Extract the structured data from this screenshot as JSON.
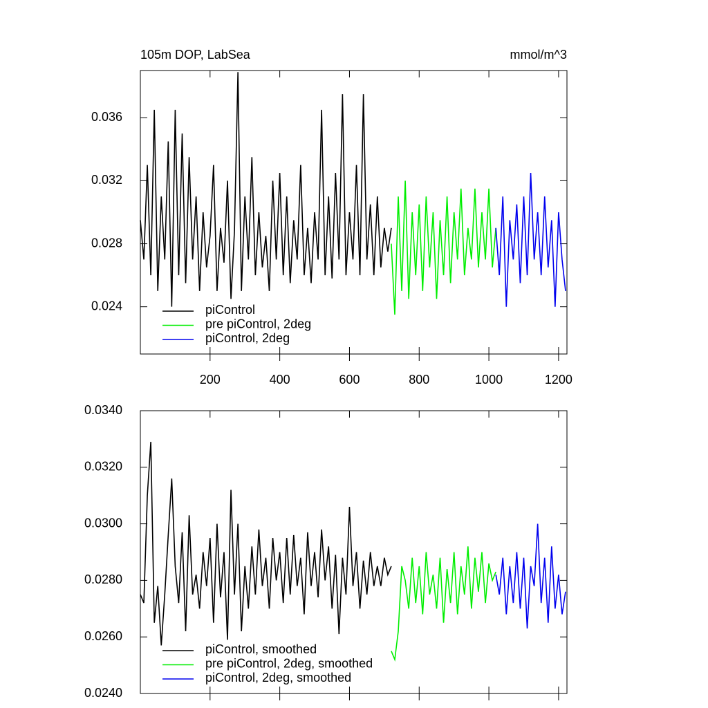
{
  "chart_data": [
    {
      "type": "line",
      "title": "105m DOP, LabSea",
      "unit_label": "mmol/m^3",
      "xlim": [
        0,
        1224
      ],
      "xticks": [
        200,
        400,
        600,
        800,
        1000,
        1200
      ],
      "ylim": [
        0.021,
        0.039
      ],
      "yticks": [
        0.024,
        0.028,
        0.032,
        0.036
      ],
      "legend": "lower left",
      "series": [
        {
          "name": "piControl",
          "color": "#000000",
          "x": [
            0,
            10,
            20,
            30,
            40,
            50,
            60,
            70,
            80,
            90,
            100,
            110,
            120,
            130,
            140,
            150,
            160,
            170,
            180,
            190,
            200,
            210,
            220,
            230,
            240,
            250,
            260,
            270,
            280,
            290,
            300,
            310,
            320,
            330,
            340,
            350,
            360,
            370,
            380,
            390,
            400,
            410,
            420,
            430,
            440,
            450,
            460,
            470,
            480,
            490,
            500,
            510,
            520,
            530,
            540,
            550,
            560,
            570,
            580,
            590,
            600,
            610,
            620,
            630,
            640,
            650,
            660,
            670,
            680,
            690,
            700,
            710,
            720
          ],
          "values": [
            0.0295,
            0.027,
            0.033,
            0.026,
            0.0365,
            0.025,
            0.031,
            0.027,
            0.0345,
            0.024,
            0.0365,
            0.026,
            0.035,
            0.0255,
            0.0335,
            0.027,
            0.031,
            0.025,
            0.03,
            0.0265,
            0.0285,
            0.033,
            0.025,
            0.029,
            0.0268,
            0.032,
            0.0245,
            0.0288,
            0.0389,
            0.025,
            0.031,
            0.027,
            0.0335,
            0.026,
            0.03,
            0.0265,
            0.0285,
            0.025,
            0.032,
            0.027,
            0.0325,
            0.026,
            0.031,
            0.0255,
            0.0295,
            0.027,
            0.033,
            0.026,
            0.029,
            0.0255,
            0.03,
            0.027,
            0.0365,
            0.026,
            0.031,
            0.0258,
            0.0325,
            0.027,
            0.0375,
            0.026,
            0.03,
            0.027,
            0.033,
            0.026,
            0.0375,
            0.027,
            0.0305,
            0.026,
            0.031,
            0.0265,
            0.029,
            0.0275,
            0.029
          ]
        },
        {
          "name": "pre piControl, 2deg",
          "color": "#00ee00",
          "x": [
            720,
            730,
            740,
            750,
            760,
            770,
            780,
            790,
            800,
            810,
            820,
            830,
            840,
            850,
            860,
            870,
            880,
            890,
            900,
            910,
            920,
            930,
            940,
            950,
            960,
            970,
            980,
            990,
            1000,
            1010,
            1020
          ],
          "values": [
            0.028,
            0.0235,
            0.031,
            0.025,
            0.032,
            0.0245,
            0.03,
            0.026,
            0.0305,
            0.025,
            0.031,
            0.0265,
            0.03,
            0.0245,
            0.0295,
            0.026,
            0.031,
            0.0255,
            0.03,
            0.027,
            0.0315,
            0.026,
            0.029,
            0.027,
            0.0315,
            0.0265,
            0.03,
            0.027,
            0.0315,
            0.0265,
            0.029
          ]
        },
        {
          "name": "piControl, 2deg",
          "color": "#0000ee",
          "x": [
            1020,
            1030,
            1040,
            1050,
            1060,
            1070,
            1080,
            1090,
            1100,
            1110,
            1120,
            1130,
            1140,
            1150,
            1160,
            1170,
            1180,
            1190,
            1200,
            1210,
            1220
          ],
          "values": [
            0.029,
            0.026,
            0.031,
            0.024,
            0.0295,
            0.027,
            0.0305,
            0.0255,
            0.031,
            0.026,
            0.0325,
            0.027,
            0.03,
            0.026,
            0.031,
            0.0265,
            0.0295,
            0.024,
            0.03,
            0.027,
            0.025
          ]
        }
      ]
    },
    {
      "type": "line",
      "xlim": [
        0,
        1224
      ],
      "xticks": [
        200,
        400,
        600,
        800,
        1000,
        1200
      ],
      "ylim": [
        0.024,
        0.034
      ],
      "yticks": [
        {
          "value": 0.024,
          "label": "0.0240"
        },
        {
          "value": 0.026,
          "label": "0.0260"
        },
        {
          "value": 0.028,
          "label": "0.0280"
        },
        {
          "value": 0.03,
          "label": "0.0300"
        },
        {
          "value": 0.032,
          "label": "0.0320"
        },
        {
          "value": 0.034,
          "label": "0.0340"
        }
      ],
      "legend": "lower left",
      "series": [
        {
          "name": "piControl, smoothed",
          "color": "#000000",
          "x": [
            0,
            10,
            20,
            30,
            40,
            50,
            60,
            70,
            80,
            90,
            100,
            110,
            120,
            130,
            140,
            150,
            160,
            170,
            180,
            190,
            200,
            210,
            220,
            230,
            240,
            250,
            260,
            270,
            280,
            290,
            300,
            310,
            320,
            330,
            340,
            350,
            360,
            370,
            380,
            390,
            400,
            410,
            420,
            430,
            440,
            450,
            460,
            470,
            480,
            490,
            500,
            510,
            520,
            530,
            540,
            550,
            560,
            570,
            580,
            590,
            600,
            610,
            620,
            630,
            640,
            650,
            660,
            670,
            680,
            690,
            700,
            710,
            720
          ],
          "values": [
            0.0275,
            0.0272,
            0.031,
            0.0329,
            0.0265,
            0.0278,
            0.0257,
            0.0275,
            0.0296,
            0.0316,
            0.0285,
            0.0272,
            0.0297,
            0.0262,
            0.0303,
            0.0275,
            0.0282,
            0.027,
            0.029,
            0.0278,
            0.0295,
            0.0265,
            0.03,
            0.0274,
            0.029,
            0.0259,
            0.0312,
            0.0275,
            0.03,
            0.0262,
            0.0285,
            0.027,
            0.0292,
            0.0275,
            0.0298,
            0.0278,
            0.0288,
            0.027,
            0.0295,
            0.028,
            0.029,
            0.0272,
            0.0295,
            0.0275,
            0.0296,
            0.0278,
            0.0288,
            0.0268,
            0.0297,
            0.0278,
            0.029,
            0.0274,
            0.0298,
            0.028,
            0.0292,
            0.027,
            0.0289,
            0.0261,
            0.0288,
            0.0275,
            0.0306,
            0.0278,
            0.029,
            0.027,
            0.0287,
            0.0275,
            0.029,
            0.0278,
            0.0285,
            0.0278,
            0.0288,
            0.0282,
            0.0285
          ]
        },
        {
          "name": "pre piControl, 2deg, smoothed",
          "color": "#00ee00",
          "x": [
            720,
            730,
            740,
            750,
            760,
            770,
            780,
            790,
            800,
            810,
            820,
            830,
            840,
            850,
            860,
            870,
            880,
            890,
            900,
            910,
            920,
            930,
            940,
            950,
            960,
            970,
            980,
            990,
            1000,
            1010,
            1020
          ],
          "values": [
            0.0255,
            0.0252,
            0.0262,
            0.0285,
            0.028,
            0.027,
            0.0288,
            0.0272,
            0.0285,
            0.0268,
            0.029,
            0.0275,
            0.0282,
            0.027,
            0.0288,
            0.0265,
            0.0284,
            0.0272,
            0.029,
            0.0268,
            0.0285,
            0.0275,
            0.0292,
            0.027,
            0.0288,
            0.0276,
            0.029,
            0.0272,
            0.0286,
            0.028,
            0.0283
          ]
        },
        {
          "name": "piControl, 2deg, smoothed",
          "color": "#0000ee",
          "x": [
            1020,
            1030,
            1040,
            1050,
            1060,
            1070,
            1080,
            1090,
            1100,
            1110,
            1120,
            1130,
            1140,
            1150,
            1160,
            1170,
            1180,
            1190,
            1200,
            1210,
            1220
          ],
          "values": [
            0.0282,
            0.0275,
            0.0288,
            0.0268,
            0.0285,
            0.0272,
            0.029,
            0.027,
            0.0288,
            0.0263,
            0.0285,
            0.0278,
            0.03,
            0.0272,
            0.0288,
            0.0265,
            0.0292,
            0.027,
            0.0282,
            0.0268,
            0.0276
          ]
        }
      ]
    }
  ]
}
